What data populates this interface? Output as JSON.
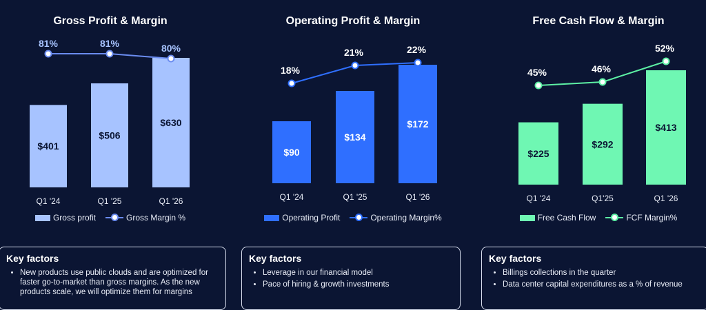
{
  "colors": {
    "background": "#0b1533",
    "gross": "#a7c3ff",
    "gross_line": "#6b8cf0",
    "operating": "#2f6fff",
    "operating_line": "#2f6fff",
    "fcf": "#6ff7b3",
    "fcf_line": "#5df0a4"
  },
  "panels": [
    {
      "title": "Gross Profit & Margin",
      "key_factors_title": "Key factors",
      "key_factors": [
        "New products use public clouds and are optimized for faster go-to-market than gross margins. As the new products scale, we will optimize them for margins"
      ]
    },
    {
      "title": "Operating Profit & Margin",
      "key_factors_title": "Key factors",
      "key_factors": [
        "Leverage in our financial model",
        "Pace of hiring & growth investments"
      ]
    },
    {
      "title": "Free Cash Flow & Margin",
      "key_factors_title": "Key factors",
      "key_factors": [
        "Billings collections in the quarter",
        "Data center capital expenditures as a % of revenue"
      ]
    }
  ],
  "chart_data": [
    {
      "type": "bar",
      "title": "Gross Profit & Margin",
      "categories": [
        "Q1 '24",
        "Q1 '25",
        "Q1 '26"
      ],
      "series": [
        {
          "name": "Gross profit",
          "kind": "bar",
          "values": [
            401,
            506,
            630
          ],
          "labels": [
            "$401",
            "$506",
            "$630"
          ]
        },
        {
          "name": "Gross Margin %",
          "kind": "line",
          "values": [
            81,
            81,
            80
          ],
          "labels": [
            "81%",
            "81%",
            "80%"
          ]
        }
      ],
      "legend": "bottom"
    },
    {
      "type": "bar",
      "title": "Operating Profit & Margin",
      "categories": [
        "Q1 '24",
        "Q1 '25",
        "Q1 '26"
      ],
      "series": [
        {
          "name": "Operating Profit",
          "kind": "bar",
          "values": [
            90,
            134,
            172
          ],
          "labels": [
            "$90",
            "$134",
            "$172"
          ]
        },
        {
          "name": "Operating Margin%",
          "kind": "line",
          "values": [
            18,
            21,
            22
          ],
          "labels": [
            "18%",
            "21%",
            "22%"
          ]
        }
      ],
      "legend": "bottom"
    },
    {
      "type": "bar",
      "title": "Free Cash Flow & Margin",
      "categories": [
        "Q1 '24",
        "Q1'25",
        "Q1 '26"
      ],
      "series": [
        {
          "name": "Free Cash Flow",
          "kind": "bar",
          "values": [
            225,
            292,
            413
          ],
          "labels": [
            "$225",
            "$292",
            "$413"
          ]
        },
        {
          "name": "FCF Margin%",
          "kind": "line",
          "values": [
            45,
            46,
            52
          ],
          "labels": [
            "45%",
            "46%",
            "52%"
          ]
        }
      ],
      "legend": "bottom"
    }
  ]
}
